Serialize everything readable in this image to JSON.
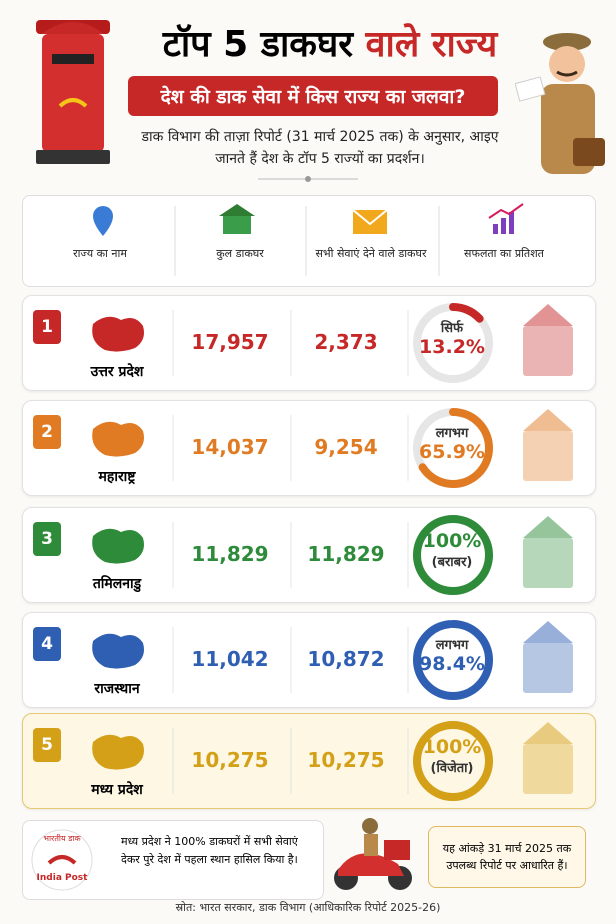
{
  "header": {
    "title_part1": "टॉप 5 डाकघर",
    "title_part2": "वाले राज्य",
    "subtitle": "देश की डाक सेवा में किस राज्य का जलवा?",
    "intro": "डाक विभाग की ताज़ा रिपोर्ट (31 मार्च 2025 तक) के अनुसार, आइए जानते हैं देश के टॉप 5 राज्यों का प्रदर्शन।"
  },
  "columns": [
    "राज्य का नाम",
    "कुल डाकघर",
    "सभी सेवाएं देने वाले डाकघर",
    "सफलता का प्रतिशत"
  ],
  "rows": [
    {
      "rank": 1,
      "state": "उत्तर प्रदेश",
      "total": "17,957",
      "full_service": "2,373",
      "ring_top": "सिर्फ",
      "ring_bottom": "13.2%",
      "percent": 13.2,
      "color": "#c62828"
    },
    {
      "rank": 2,
      "state": "महाराष्ट्र",
      "total": "14,037",
      "full_service": "9,254",
      "ring_top": "लगभग",
      "ring_bottom": "65.9%",
      "percent": 65.9,
      "color": "#e07b24"
    },
    {
      "rank": 3,
      "state": "तमिलनाडु",
      "total": "11,829",
      "full_service": "11,829",
      "ring_top": "100%",
      "ring_bottom": "(बराबर)",
      "percent": 100,
      "color": "#2e8b3a"
    },
    {
      "rank": 4,
      "state": "राजस्थान",
      "total": "11,042",
      "full_service": "10,872",
      "ring_top": "लगभग",
      "ring_bottom": "98.4%",
      "percent": 98.4,
      "color": "#2f5fb3"
    },
    {
      "rank": 5,
      "state": "मध्य प्रदेश",
      "total": "10,275",
      "full_service": "10,275",
      "ring_top": "100%",
      "ring_bottom": "(विजेता)",
      "percent": 100,
      "color": "#d4a017"
    }
  ],
  "footer": {
    "logo_hindi": "भारतीय डाक",
    "logo_english": "India Post",
    "note": "मध्य प्रदेश ने 100% डाकघरों में सभी सेवाएं देकर पुरे देश में पहला स्थान हासिल किया है।",
    "data_note": "यह आंकड़े 31 मार्च 2025 तक उपलब्ध रिपोर्ट पर आधारित हैं।",
    "source": "स्रोत: भारत सरकार, डाक विभाग (आधिकारिक रिपोर्ट 2025-26)"
  }
}
